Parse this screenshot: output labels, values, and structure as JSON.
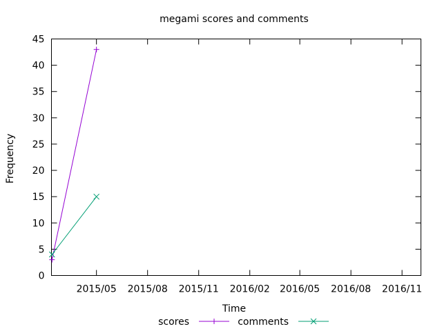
{
  "chart_data": {
    "type": "line",
    "title": "megami scores and comments",
    "xlabel": "Time",
    "ylabel": "Frequency",
    "x_type": "date",
    "xlim": [
      "2015-02-09",
      "2016-12-05"
    ],
    "ylim": [
      0,
      45
    ],
    "x_ticks": [
      {
        "date": "2015-05-01",
        "label": "2015/05"
      },
      {
        "date": "2015-08-01",
        "label": "2015/08"
      },
      {
        "date": "2015-11-01",
        "label": "2015/11"
      },
      {
        "date": "2016-02-01",
        "label": "2016/02"
      },
      {
        "date": "2016-05-01",
        "label": "2016/05"
      },
      {
        "date": "2016-08-01",
        "label": "2016/08"
      },
      {
        "date": "2016-11-01",
        "label": "2016/11"
      }
    ],
    "y_ticks": [
      0,
      5,
      10,
      15,
      20,
      25,
      30,
      35,
      40,
      45
    ],
    "grid": false,
    "legend_position": "bottom",
    "series": [
      {
        "name": "scores",
        "color": "#9400d3",
        "marker": "plus",
        "points": [
          {
            "x": "2015-02-10",
            "y": 3
          },
          {
            "x": "2015-05-01",
            "y": 43
          }
        ]
      },
      {
        "name": "comments",
        "color": "#009e73",
        "marker": "cross",
        "points": [
          {
            "x": "2015-02-10",
            "y": 4
          },
          {
            "x": "2015-05-01",
            "y": 15
          }
        ]
      }
    ]
  }
}
